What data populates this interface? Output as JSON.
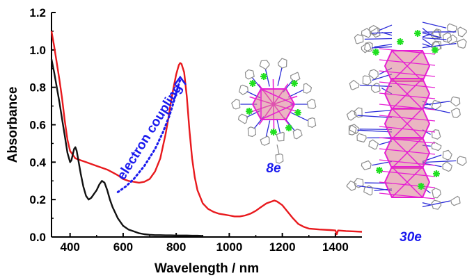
{
  "chart_data": {
    "type": "line",
    "title": "",
    "xlabel": "Wavelength / nm",
    "ylabel": "Absorbance",
    "xlim": [
      330,
      1500
    ],
    "ylim": [
      0,
      1.2
    ],
    "xticks": [
      400,
      600,
      800,
      1000,
      1200,
      1400
    ],
    "yticks": [
      0.0,
      0.2,
      0.4,
      0.6,
      0.8,
      1.0,
      1.2
    ],
    "xtick_labels": [
      "400",
      "600",
      "800",
      "1000",
      "1200",
      "1400"
    ],
    "ytick_labels": [
      "0.0",
      "0.2",
      "0.4",
      "0.6",
      "0.8",
      "1.0",
      "1.2"
    ],
    "grid": false,
    "legend": "none",
    "series": [
      {
        "color": "#e8191d",
        "x": [
          330,
          340,
          350,
          360,
          370,
          380,
          390,
          400,
          420,
          440,
          460,
          480,
          500,
          520,
          540,
          560,
          580,
          600,
          620,
          640,
          660,
          680,
          700,
          720,
          740,
          760,
          770,
          780,
          790,
          800,
          810,
          815,
          820,
          830,
          840,
          850,
          860,
          870,
          880,
          900,
          920,
          940,
          960,
          980,
          1000,
          1020,
          1040,
          1060,
          1080,
          1100,
          1120,
          1140,
          1160,
          1170,
          1180,
          1200,
          1220,
          1240,
          1260,
          1280,
          1300,
          1340,
          1380,
          1400,
          1405,
          1410,
          1440,
          1470,
          1500
        ],
        "y": [
          1.1,
          1.02,
          0.93,
          0.84,
          0.74,
          0.62,
          0.52,
          0.46,
          0.42,
          0.41,
          0.4,
          0.39,
          0.38,
          0.37,
          0.36,
          0.345,
          0.33,
          0.31,
          0.3,
          0.295,
          0.29,
          0.295,
          0.31,
          0.35,
          0.42,
          0.55,
          0.63,
          0.72,
          0.8,
          0.87,
          0.92,
          0.93,
          0.925,
          0.88,
          0.75,
          0.57,
          0.42,
          0.32,
          0.25,
          0.18,
          0.15,
          0.135,
          0.125,
          0.12,
          0.115,
          0.11,
          0.11,
          0.115,
          0.125,
          0.14,
          0.16,
          0.18,
          0.19,
          0.195,
          0.19,
          0.17,
          0.135,
          0.1,
          0.07,
          0.055,
          0.045,
          0.04,
          0.037,
          0.035,
          0.015,
          0.035,
          0.032,
          0.03,
          0.028
        ]
      },
      {
        "color": "#111111",
        "x": [
          330,
          340,
          350,
          360,
          370,
          380,
          390,
          400,
          405,
          410,
          415,
          420,
          425,
          430,
          440,
          450,
          460,
          470,
          480,
          490,
          500,
          510,
          520,
          530,
          540,
          550,
          560,
          580,
          600,
          620,
          640,
          660,
          680,
          700,
          720,
          740,
          760,
          780,
          800,
          820,
          840,
          860,
          880,
          900
        ],
        "y": [
          0.95,
          0.88,
          0.8,
          0.72,
          0.63,
          0.54,
          0.45,
          0.4,
          0.41,
          0.44,
          0.47,
          0.48,
          0.46,
          0.42,
          0.34,
          0.27,
          0.22,
          0.2,
          0.21,
          0.23,
          0.25,
          0.28,
          0.3,
          0.29,
          0.25,
          0.2,
          0.16,
          0.1,
          0.06,
          0.04,
          0.03,
          0.02,
          0.015,
          0.012,
          0.01,
          0.01,
          0.009,
          0.009,
          0.008,
          0.008,
          0.008,
          0.007,
          0.007,
          0.006
        ]
      }
    ],
    "annotations": [
      {
        "text": "electron coupling",
        "color": "#1a1aee"
      },
      {
        "text": "8e",
        "color": "#1a1aee"
      },
      {
        "text": "30e",
        "color": "#1a1aee"
      }
    ],
    "coupling_arrow": {
      "color": "#1a1aee",
      "x": [
        580,
        610,
        640,
        680,
        720,
        750,
        775,
        790,
        800,
        810,
        815
      ],
      "y": [
        0.24,
        0.27,
        0.31,
        0.38,
        0.47,
        0.56,
        0.65,
        0.72,
        0.77,
        0.82,
        0.84
      ]
    }
  },
  "graphics": {
    "structure_small_icon": "8e-metal-cluster-structure",
    "structure_large_icon": "30e-metal-cluster-structure"
  }
}
